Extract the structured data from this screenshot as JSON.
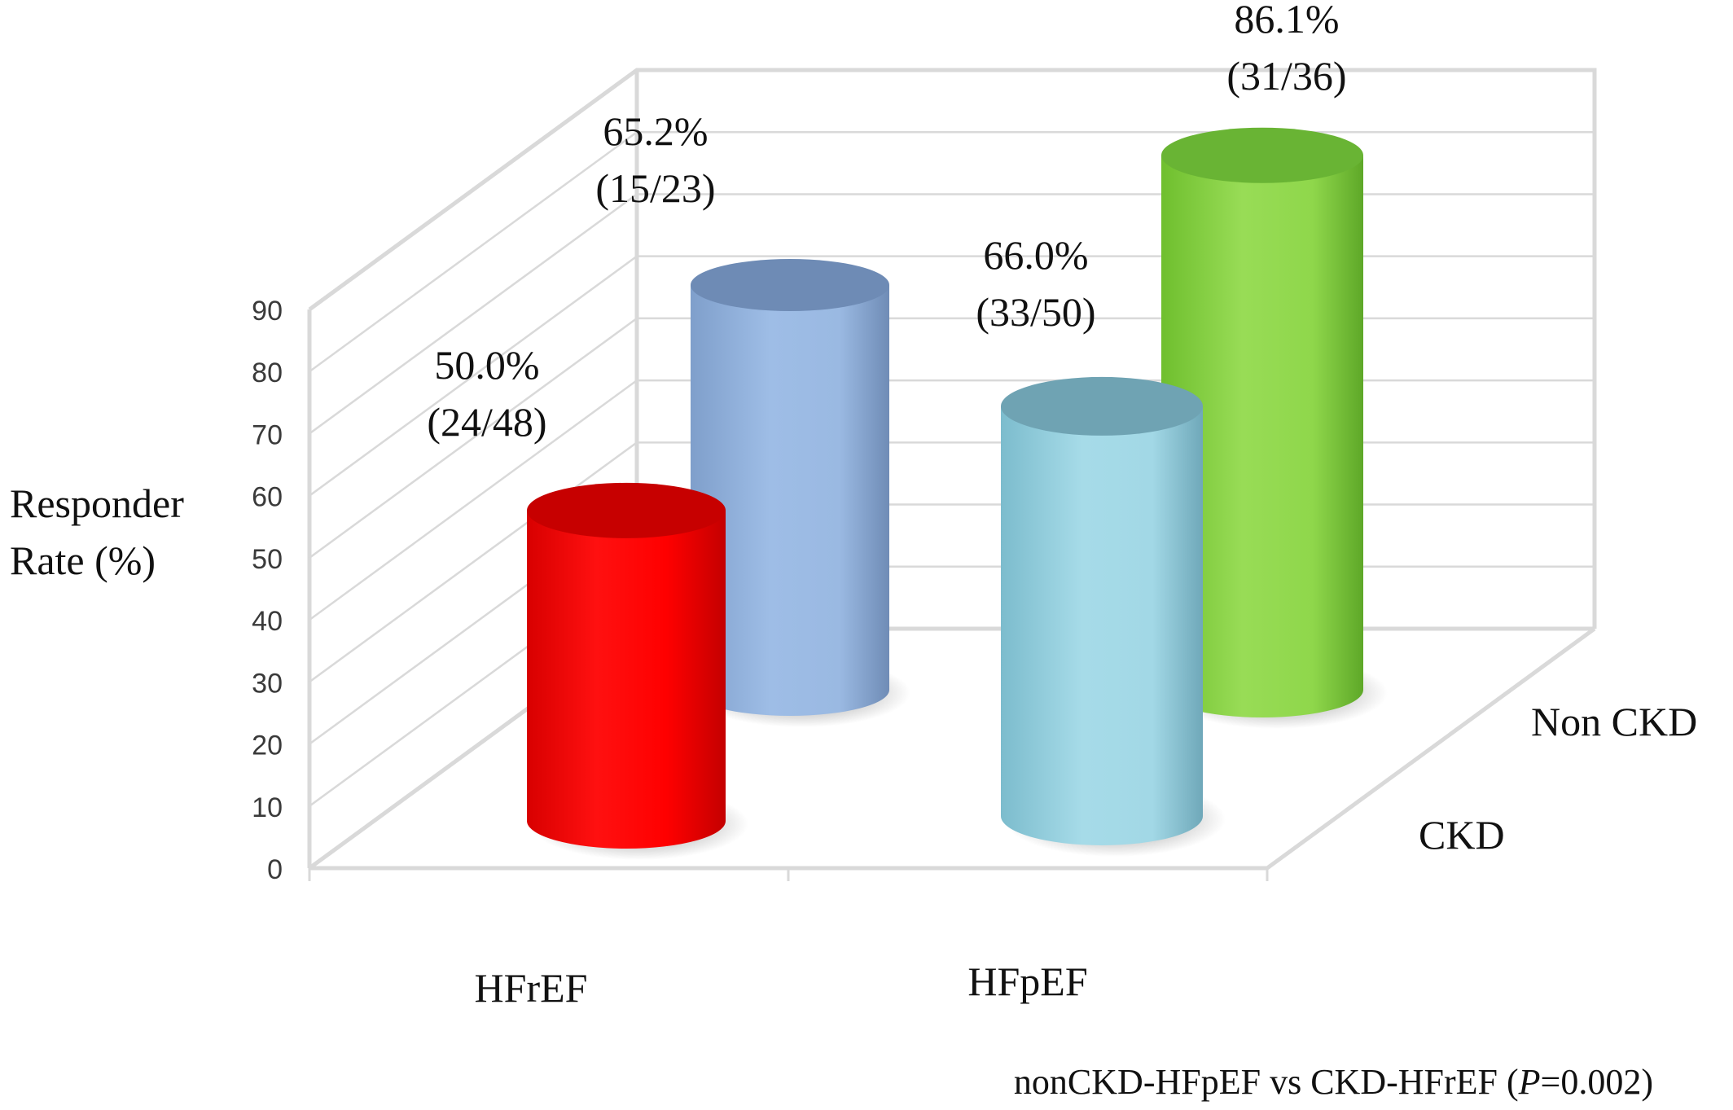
{
  "chart_data": {
    "type": "bar",
    "style": "3d-cylinder",
    "ylabel_lines": [
      "Responder",
      "Rate (%)"
    ],
    "ylim": [
      0,
      90
    ],
    "yticks": [
      "0",
      "10",
      "20",
      "30",
      "40",
      "50",
      "60",
      "70",
      "80",
      "90"
    ],
    "categories": [
      "HFrEF",
      "HFpEF"
    ],
    "series": [
      {
        "name": "Non CKD",
        "colors": [
          "#9cbce4",
          "#a9dbe6"
        ],
        "values": [
          65.2,
          86.1
        ],
        "labels": [
          [
            "65.2%",
            "(15/23)"
          ],
          [
            "86.1%",
            "(31/36)"
          ]
        ]
      },
      {
        "name": "CKD",
        "colors": [
          "#ff1a1a",
          "#9fd5e3"
        ],
        "values": [
          50.0,
          66.0
        ],
        "labels": [
          [
            "50.0%",
            "(24/48)"
          ],
          [
            "66.0%",
            "(33/50)"
          ]
        ]
      }
    ],
    "bar_colors": {
      "CKD-HFrEF": "#ff0000",
      "NonCKD-HFrEF": "#8fb0da",
      "CKD-HFpEF": "#8fd2e2",
      "NonCKD-HFpEF": "#8cd84c"
    },
    "grid": true,
    "annotation": "nonCKD-HFpEF  vs  CKD-HFrEF (",
    "annotation_p": "P",
    "annotation_tail": "=0.002)"
  }
}
